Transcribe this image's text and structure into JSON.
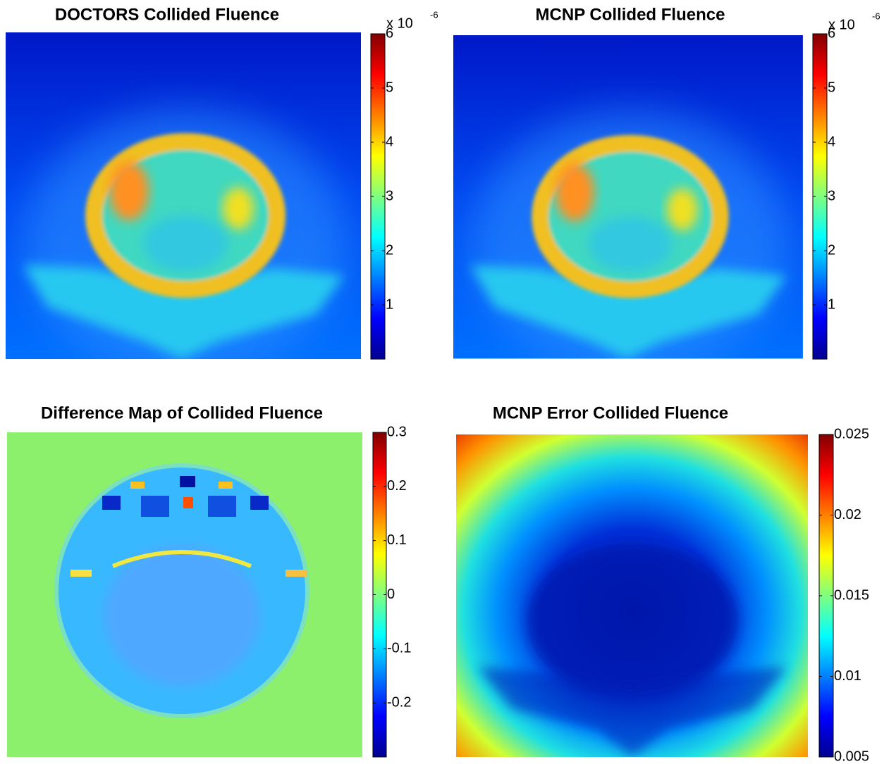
{
  "chart_data": [
    {
      "type": "heatmap",
      "title": "DOCTORS Collided Fluence",
      "colormap": "jet",
      "scale_label": {
        "base": "x 10",
        "exponent": "-6"
      },
      "clim": [
        0,
        6
      ],
      "cticks": [
        1,
        2,
        3,
        4,
        5,
        6
      ]
    },
    {
      "type": "heatmap",
      "title": "MCNP Collided Fluence",
      "colormap": "jet",
      "scale_label": {
        "base": "x 10",
        "exponent": "-6"
      },
      "clim": [
        0,
        6
      ],
      "cticks": [
        1,
        2,
        3,
        4,
        5,
        6
      ]
    },
    {
      "type": "heatmap",
      "title": "Difference Map of Collided Fluence",
      "colormap": "jet",
      "clim": [
        -0.3,
        0.3
      ],
      "cticks": [
        -0.2,
        -0.1,
        0,
        0.1,
        0.2,
        0.3
      ]
    },
    {
      "type": "heatmap",
      "title": "MCNP Error Collided Fluence",
      "colormap": "jet",
      "clim": [
        0.005,
        0.025
      ],
      "cticks": [
        0.005,
        0.01,
        0.015,
        0.02,
        0.025
      ]
    }
  ]
}
